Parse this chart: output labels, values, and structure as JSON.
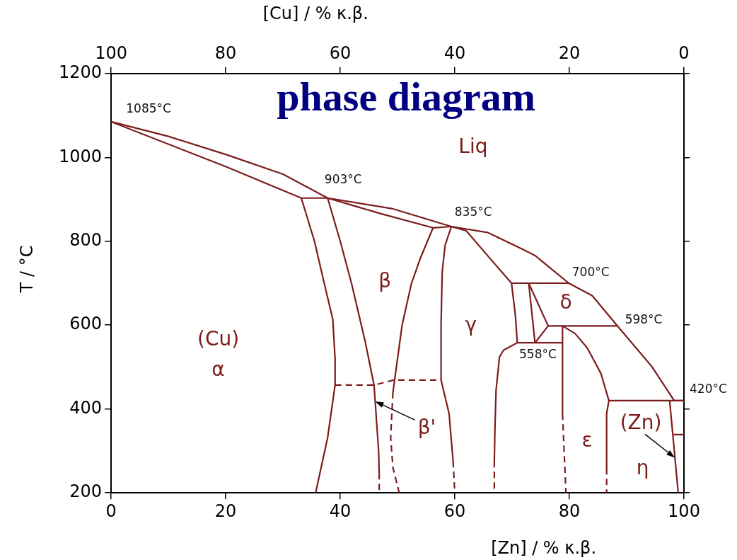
{
  "chart_data": {
    "type": "line",
    "title": "phase diagram",
    "xlabel": "[Zn] / % κ.β.",
    "x2label": "[Cu] / % κ.β.",
    "ylabel": "T / °C",
    "xlim": [
      0,
      100
    ],
    "xticks": [
      0,
      20,
      40,
      60,
      80,
      100
    ],
    "x2lim": [
      100,
      0
    ],
    "x2ticks": [
      100,
      80,
      60,
      40,
      20,
      0
    ],
    "ylim": [
      200,
      1200
    ],
    "yticks": [
      200,
      400,
      600,
      800,
      1000,
      1200
    ],
    "grid": false,
    "legend": false,
    "marker": "none",
    "line_style": "solid",
    "series": [
      {
        "color": "#7b1c1c",
        "x": [
          0,
          10,
          20,
          30,
          37.8,
          49,
          59.4,
          65.7,
          71.5,
          74,
          79.9,
          84,
          88.4,
          94.4,
          98.3,
          100
        ],
        "values": [
          1085,
          1050,
          1007,
          960,
          903,
          878,
          835,
          821,
          783,
          766,
          700,
          670,
          598,
          501,
          420,
          420
        ]
      },
      {
        "color": "#7b1c1c",
        "x": [
          0,
          20,
          33.2,
          37.8,
          47,
          56.2,
          59.4,
          62,
          65.7,
          69.9,
          79.9
        ],
        "values": [
          1085,
          978,
          903,
          903,
          866,
          832,
          835,
          825,
          766,
          700,
          700
        ]
      },
      {
        "color": "#7b1c1c",
        "x": [
          33.2,
          35.5,
          37.2,
          38.7,
          39.1,
          39.1,
          37.8,
          35.7
        ],
        "values": [
          903,
          800,
          700,
          614,
          520,
          457,
          332,
          200
        ]
      },
      {
        "color": "#7b1c1c",
        "x": [
          37.8,
          40,
          42,
          44.4,
          45.9,
          46.7,
          46.8
        ],
        "values": [
          903,
          800,
          698,
          558,
          457,
          300,
          247
        ]
      },
      {
        "color": "#7b1c1c",
        "line_style": "dashed",
        "x": [
          46.8,
          46.8
        ],
        "values": [
          247,
          200
        ]
      },
      {
        "color": "#7b1c1c",
        "line_style": "dashed",
        "x": [
          39.1,
          45.9,
          49.3,
          57.6
        ],
        "values": [
          457,
          457,
          469,
          469
        ]
      },
      {
        "color": "#7b1c1c",
        "x": [
          56.2,
          54,
          52.4,
          50.8,
          49.5,
          49.2
        ],
        "values": [
          832,
          760,
          698,
          600,
          470,
          440
        ]
      },
      {
        "color": "#7b1c1c",
        "line_style": "dashed",
        "x": [
          49.2,
          48.8,
          49.2,
          50.3
        ],
        "values": [
          440,
          332,
          260,
          200
        ]
      },
      {
        "color": "#7b1c1c",
        "x": [
          59.4,
          58.3,
          57.8,
          57.6,
          57.6,
          59,
          59.7
        ],
        "values": [
          835,
          790,
          727,
          600,
          469,
          389,
          276
        ]
      },
      {
        "color": "#7b1c1c",
        "line_style": "dashed",
        "x": [
          59.7,
          60
        ],
        "values": [
          276,
          200
        ]
      },
      {
        "color": "#7b1c1c",
        "x": [
          69.9,
          70.6,
          70.9
        ],
        "values": [
          700,
          620,
          558
        ]
      },
      {
        "color": "#7b1c1c",
        "x": [
          70.9,
          78.8
        ],
        "values": [
          558,
          558
        ]
      },
      {
        "color": "#7b1c1c",
        "x": [
          72.9,
          74
        ],
        "values": [
          700,
          558
        ]
      },
      {
        "color": "#7b1c1c",
        "x": [
          72.9,
          76.3,
          74
        ],
        "values": [
          700,
          598,
          558
        ]
      },
      {
        "color": "#7b1c1c",
        "x": [
          76.3,
          88.4
        ],
        "values": [
          598,
          598
        ]
      },
      {
        "color": "#7b1c1c",
        "x": [
          70.9,
          68.5,
          67.8,
          67.2,
          67,
          66.9
        ],
        "values": [
          558,
          540,
          524,
          445,
          350,
          276
        ]
      },
      {
        "color": "#7b1c1c",
        "line_style": "dashed",
        "x": [
          66.9,
          66.9
        ],
        "values": [
          276,
          200
        ]
      },
      {
        "color": "#7b1c1c",
        "x": [
          78.8,
          78.8
        ],
        "values": [
          598,
          389
        ]
      },
      {
        "color": "#7b1c1c",
        "line_style": "dashed",
        "x": [
          78.8,
          79.4
        ],
        "values": [
          389,
          200
        ]
      },
      {
        "color": "#7b1c1c",
        "x": [
          78.8,
          81,
          83.1,
          85.5,
          86.9,
          86.5,
          86.5
        ],
        "values": [
          598,
          580,
          546,
          485,
          420,
          389,
          259
        ]
      },
      {
        "color": "#7b1c1c",
        "line_style": "dashed",
        "x": [
          86.5,
          86.5
        ],
        "values": [
          259,
          200
        ]
      },
      {
        "color": "#7b1c1c",
        "x": [
          86.9,
          100
        ],
        "values": [
          420,
          420
        ]
      },
      {
        "color": "#7b1c1c",
        "x": [
          97.5,
          98.1,
          99
        ],
        "values": [
          420,
          332,
          200
        ]
      },
      {
        "color": "#7b1c1c",
        "x": [
          98.2,
          100
        ],
        "values": [
          339,
          339
        ]
      }
    ],
    "annotations": [
      "Liq",
      "(Cu)",
      "α",
      "β",
      "γ",
      "δ",
      "ε",
      "η",
      {
        "text": "β'",
        "x": 46.1,
        "y": 418
      },
      {
        "text": "(Zn)",
        "x": 98.4,
        "y": 284
      },
      {
        "text": "1085°C",
        "x": 0,
        "y": 1085
      },
      {
        "text": "903°C",
        "x": 37.8,
        "y": 903
      },
      {
        "text": "835°C",
        "x": 59.4,
        "y": 835
      },
      {
        "text": "700°C",
        "x": 79.9,
        "y": 700
      },
      {
        "text": "598°C",
        "x": 88.4,
        "y": 598
      },
      {
        "text": "558°C",
        "x": 74,
        "y": 558
      },
      {
        "text": "420°C",
        "x": 100,
        "y": 420
      }
    ]
  }
}
